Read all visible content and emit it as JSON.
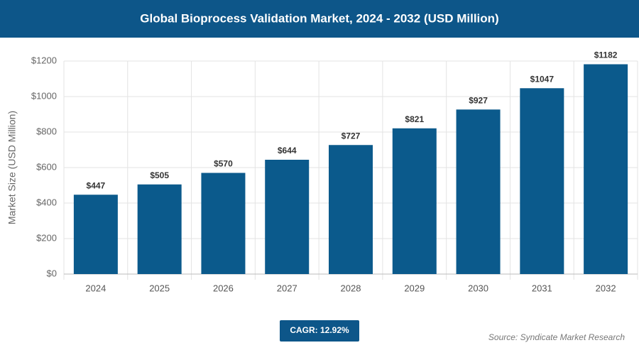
{
  "chart_data": {
    "type": "bar",
    "title": "Global Bioprocess Validation Market, 2024 - 2032 (USD Million)",
    "y_label": "Market Size (USD Million)",
    "categories": [
      "2024",
      "2025",
      "2026",
      "2027",
      "2028",
      "2029",
      "2030",
      "2031",
      "2032"
    ],
    "values": [
      447,
      505,
      570,
      644,
      727,
      821,
      927,
      1047,
      1182
    ],
    "value_labels": [
      "$447",
      "$505",
      "$570",
      "$644",
      "$727",
      "$821",
      "$927",
      "$1047",
      "$1182"
    ],
    "color": "#0b5a8c",
    "ylim": [
      0,
      1200
    ],
    "yticks": [
      {
        "value": 0,
        "label": "$0"
      },
      {
        "value": 200,
        "label": "$200"
      },
      {
        "value": 400,
        "label": "$400"
      },
      {
        "value": 600,
        "label": "$600"
      },
      {
        "value": 800,
        "label": "$800"
      },
      {
        "value": 1000,
        "label": "$1000"
      },
      {
        "value": 1200,
        "label": "$1200"
      }
    ],
    "grid": true,
    "cagr_label": "CAGR: 12.92%",
    "source": "Source: Syndicate Market Research"
  }
}
